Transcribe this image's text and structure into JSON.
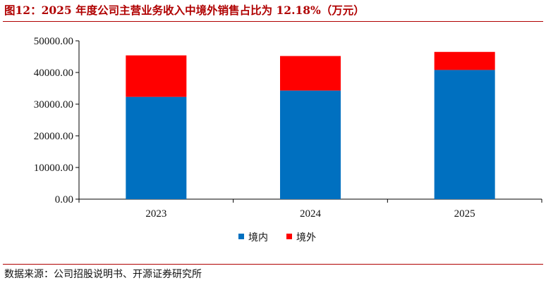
{
  "title": "图12：2025 年度公司主营业务收入中境外销售占比为 12.18%（万元）",
  "source": "数据来源：公司招股说明书、开源证券研究所",
  "chart_data": {
    "type": "bar",
    "stacked": true,
    "categories": [
      "2023",
      "2024",
      "2025"
    ],
    "series": [
      {
        "name": "境内",
        "color": "#0070C0",
        "values": [
          32300,
          34300,
          40800
        ]
      },
      {
        "name": "境外",
        "color": "#FF0000",
        "values": [
          13100,
          10900,
          5700
        ]
      }
    ],
    "yticks": [
      "0.00",
      "10000.00",
      "20000.00",
      "30000.00",
      "40000.00",
      "50000.00"
    ],
    "ylim": [
      0,
      50000
    ],
    "grid": false,
    "legend_position": "bottom"
  }
}
